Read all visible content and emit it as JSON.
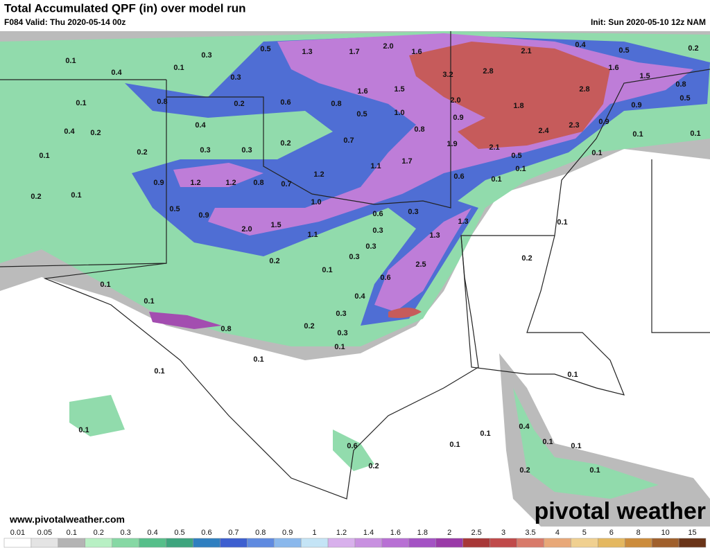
{
  "header": {
    "title": "Total Accumulated QPF (in) over model run",
    "valid": "F084 Valid: Thu 2020-05-14 00z",
    "init": "Init: Sun 2020-05-10 12z NAM"
  },
  "footer": {
    "url": "www.pivotalweather.com",
    "logo": "pivotal weather"
  },
  "map": {
    "labels": [
      "0.1",
      "0.4",
      "0.1",
      "0.3",
      "0.5",
      "1.3",
      "1.7",
      "2.0",
      "1.6",
      "2.1",
      "0.4",
      "0.5",
      "0.2",
      "0.3",
      "3.2",
      "2.8",
      "1.6",
      "1.5",
      "0.8",
      "0.1",
      "0.8",
      "0.2",
      "0.6",
      "0.8",
      "1.6",
      "1.5",
      "2.0",
      "2.8",
      "0.5",
      "1.8",
      "0.9",
      "0.4",
      "0.2",
      "0.4",
      "0.5",
      "1.0",
      "0.9",
      "0.8",
      "0.9",
      "2.4",
      "2.3",
      "0.1",
      "0.1",
      "0.2",
      "0.3",
      "0.3",
      "0.2",
      "0.7",
      "1.9",
      "2.1",
      "0.1",
      "0.1",
      "0.5",
      "1.7",
      "1.1",
      "1.2",
      "0.1",
      "0.9",
      "1.2",
      "1.2",
      "0.8",
      "0.7",
      "0.6",
      "0.1",
      "0.2",
      "0.1",
      "1.0",
      "0.5",
      "0.9",
      "0.6",
      "0.3",
      "1.3",
      "0.1",
      "2.0",
      "1.5",
      "1.1",
      "0.3",
      "1.3",
      "0.3",
      "0.3",
      "0.2",
      "0.1",
      "0.2",
      "2.5",
      "0.6",
      "0.1",
      "0.4",
      "0.1",
      "0.3",
      "0.8",
      "0.2",
      "0.3",
      "0.1",
      "0.1",
      "0.1",
      "0.1",
      "0.1",
      "0.1",
      "0.4",
      "0.6",
      "0.1",
      "0.1",
      "0.1",
      "0.2",
      "0.2",
      "0.1"
    ]
  },
  "colorbar": {
    "ticks": [
      0.01,
      0.05,
      0.1,
      0.2,
      0.3,
      0.4,
      0.5,
      0.6,
      0.7,
      0.8,
      0.9,
      1,
      1.2,
      1.4,
      1.6,
      1.8,
      2,
      2.5,
      3,
      3.5,
      4,
      5,
      6,
      8,
      10,
      15
    ],
    "colors": [
      "#ffffff",
      "#e4e4e4",
      "#b4b4b4",
      "#b8f0c4",
      "#86d8a4",
      "#56bf8a",
      "#3ea57e",
      "#2f7fc0",
      "#3d5fd0",
      "#5f8ae0",
      "#8ab8ec",
      "#c4e4f6",
      "#d8b0ec",
      "#c890e0",
      "#b870d4",
      "#a452c4",
      "#9a3aa8",
      "#a83838",
      "#c04a4a",
      "#d87a6a",
      "#e8a878",
      "#f0d090",
      "#e4b860",
      "#cc8c3c",
      "#a0602c",
      "#6a3418"
    ]
  }
}
